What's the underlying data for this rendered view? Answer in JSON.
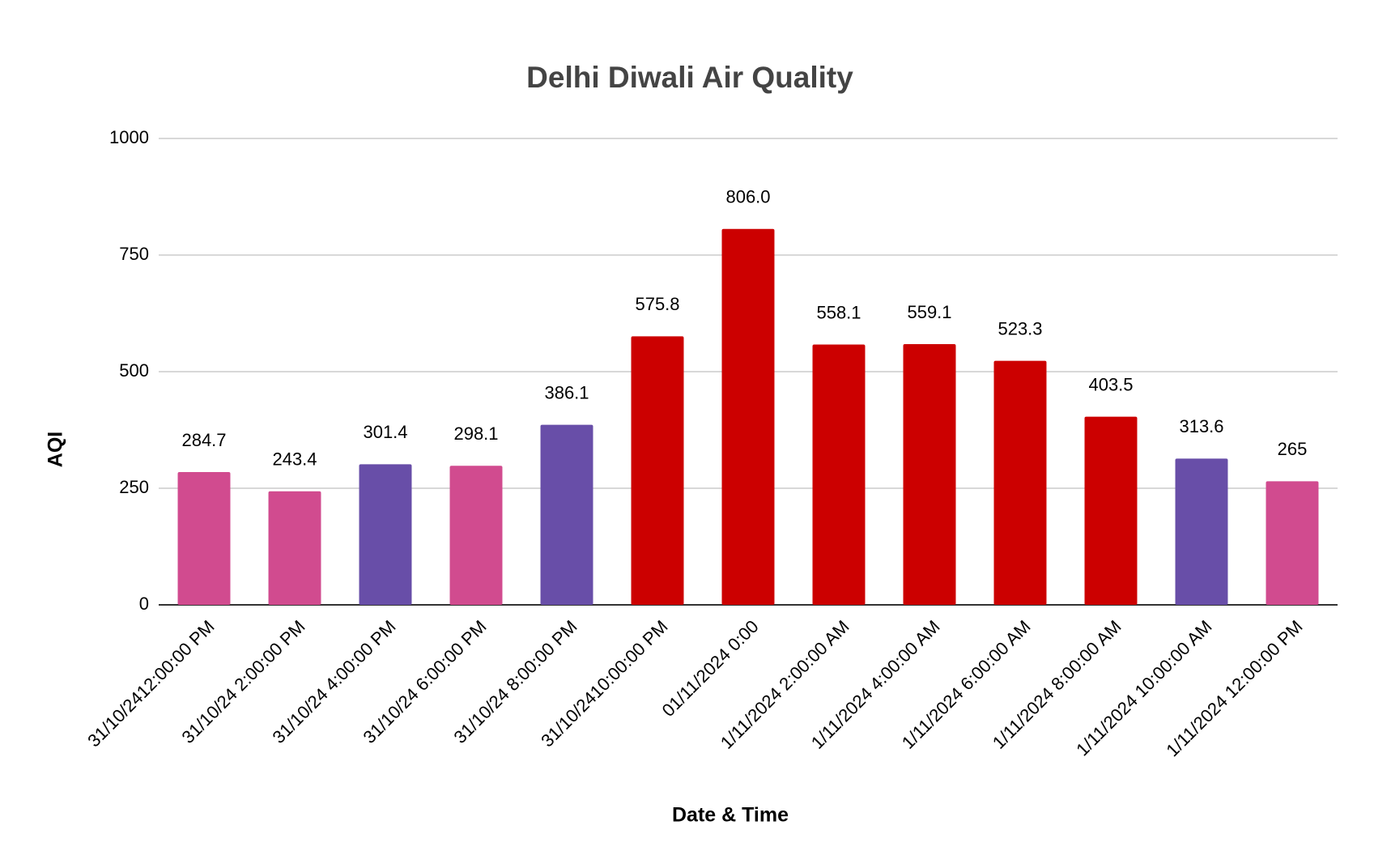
{
  "chart_data": {
    "type": "bar",
    "title": "Delhi Diwali Air Quality",
    "x_label": "Date & Time",
    "y_label": "AQI",
    "categories": [
      "31/10/2412:00:00 PM",
      "31/10/24 2:00:00 PM",
      "31/10/24 4:00:00 PM",
      "31/10/24 6:00:00 PM",
      "31/10/24 8:00:00 PM",
      "31/10/2410:00:00 PM",
      "01/11/2024 0:00",
      "1/11/2024 2:00:00 AM",
      "1/11/2024 4:00:00 AM",
      "1/11/2024 6:00:00 AM",
      "1/11/2024 8:00:00 AM",
      "1/11/2024 10:00:00 AM",
      "1/11/2024 12:00:00 PM"
    ],
    "values": [
      284.7,
      243.4,
      301.4,
      298.1,
      386.1,
      575.8,
      806.0,
      558.1,
      559.1,
      523.3,
      403.5,
      313.6,
      265
    ],
    "value_labels": [
      "284.7",
      "243.4",
      "301.4",
      "298.1",
      "386.1",
      "575.8",
      "806.0",
      "558.1",
      "559.1",
      "523.3",
      "403.5",
      "313.6",
      "265"
    ],
    "colors": [
      "#d14b8f",
      "#d14b8f",
      "#684ea8",
      "#d14b8f",
      "#684ea8",
      "#cc0000",
      "#cc0000",
      "#cc0000",
      "#cc0000",
      "#cc0000",
      "#cc0000",
      "#684ea8",
      "#d14b8f"
    ],
    "ylim": [
      0,
      1000
    ],
    "yticks": [
      0,
      250,
      500,
      750,
      1000
    ],
    "grid": true
  }
}
